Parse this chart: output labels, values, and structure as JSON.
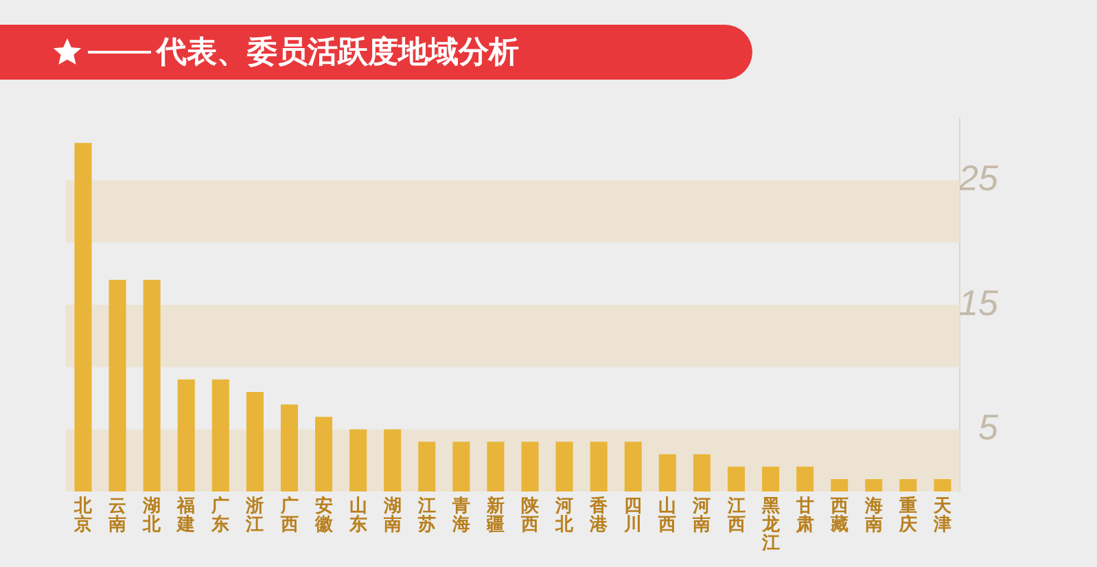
{
  "chart_data": {
    "type": "bar",
    "title": "代表、委员活跃度地域分析",
    "categories": [
      "北京",
      "云南",
      "湖北",
      "福建",
      "广东",
      "浙江",
      "广西",
      "安徽",
      "山东",
      "湖南",
      "江苏",
      "青海",
      "新疆",
      "陕西",
      "河北",
      "香港",
      "四川",
      "山西",
      "河南",
      "江西",
      "黑龙江",
      "甘肃",
      "西藏",
      "海南",
      "重庆",
      "天津"
    ],
    "values": [
      28,
      17,
      17,
      9,
      9,
      8,
      7,
      6,
      5,
      5,
      4,
      4,
      4,
      4,
      4,
      4,
      4,
      3,
      3,
      2,
      2,
      2,
      1,
      1,
      1,
      1
    ],
    "color": "#e8b53a",
    "ylim": [
      0,
      30
    ],
    "yticks": [
      5,
      15,
      25
    ],
    "bands": [
      {
        "axis": "y",
        "from": 0,
        "to": 5,
        "color": "#ede3d3"
      },
      {
        "axis": "y",
        "from": 10,
        "to": 15,
        "color": "#ede3d3"
      },
      {
        "axis": "y",
        "from": 20,
        "to": 25,
        "color": "#ede3d3"
      }
    ],
    "grid": false,
    "legend": false
  }
}
